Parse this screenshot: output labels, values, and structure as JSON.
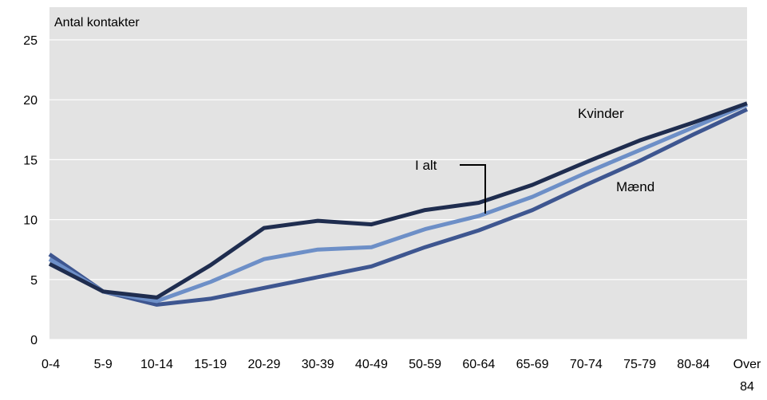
{
  "chart_data": {
    "type": "line",
    "ylabel": "Antal kontakter",
    "xlabel": "",
    "categories": [
      "0-4",
      "5-9",
      "10-14",
      "15-19",
      "20-29",
      "30-39",
      "40-49",
      "50-59",
      "60-64",
      "65-69",
      "70-74",
      "75-79",
      "80-84",
      "Over 84"
    ],
    "ylim": [
      0,
      25
    ],
    "yticks": [
      0,
      5,
      10,
      15,
      20,
      25
    ],
    "grid": true,
    "series": [
      {
        "name": "Kvinder",
        "color": "#1f2d4f",
        "values": [
          6.3,
          4.0,
          3.5,
          6.2,
          9.3,
          9.9,
          9.6,
          10.8,
          11.4,
          12.9,
          14.8,
          16.6,
          18.1,
          19.7
        ]
      },
      {
        "name": "I alt",
        "color": "#6d8fc7",
        "values": [
          6.7,
          4.0,
          3.2,
          4.8,
          6.7,
          7.5,
          7.7,
          9.2,
          10.3,
          11.9,
          13.9,
          15.8,
          17.7,
          19.6
        ]
      },
      {
        "name": "Mænd",
        "color": "#3e5690",
        "values": [
          7.1,
          4.0,
          2.9,
          3.4,
          4.3,
          5.2,
          6.1,
          7.7,
          9.1,
          10.8,
          12.9,
          14.9,
          17.1,
          19.2
        ]
      }
    ],
    "annotations": [
      "Kvinder",
      "I alt",
      "Mænd"
    ],
    "last_category_lines": [
      "Over",
      "84"
    ]
  },
  "colors": {
    "plot_background": "#e3e3e3",
    "gridline": "#ffffff"
  }
}
